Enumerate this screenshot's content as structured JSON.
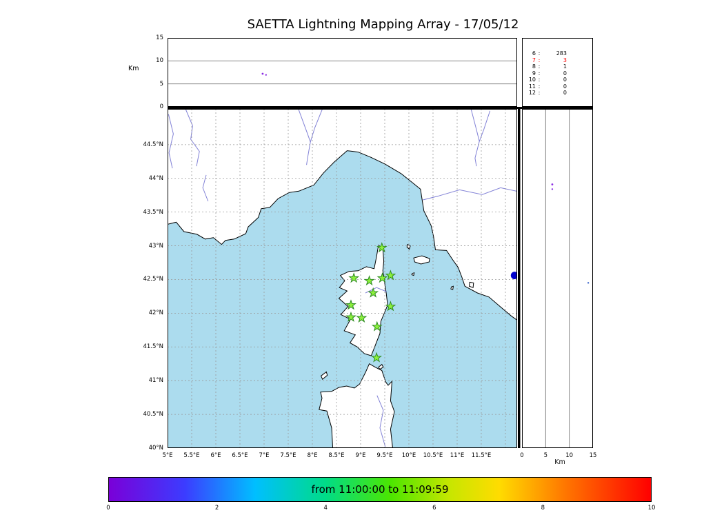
{
  "colors": {
    "background": "#FFFFFF",
    "sea": "#ACDCEE",
    "land": "#FFFFFF",
    "coast": "#000000",
    "river": "#6B6BCF",
    "grid": "#999999",
    "panel_grid": "#777777",
    "station_fill": "#8CF03C",
    "station_edge": "#2E8B22"
  },
  "chart_data": {
    "type": "scatter",
    "title": "SAETTA Lightning Mapping Array - 17/05/12",
    "panels": {
      "alt_lon": {
        "name": "altitude-vs-longitude",
        "ylabel": "Km",
        "ylim": [
          0,
          15
        ],
        "yticks": [
          {
            "value": 15,
            "label": "15"
          },
          {
            "value": 10,
            "label": "10"
          },
          {
            "value": 5,
            "label": "5"
          },
          {
            "value": 0,
            "label": "0"
          }
        ],
        "gridlines": [
          5,
          10
        ],
        "points": [
          {
            "lon": 6.97,
            "alt": 7.2,
            "color": "#8A2BE2",
            "r": 1.4
          },
          {
            "lon": 7.04,
            "alt": 6.95,
            "color": "#8A2BE2",
            "r": 1.2
          }
        ]
      },
      "station_counts": {
        "name": "stations-contributing-source-counts",
        "rows": [
          {
            "station": "6",
            "count": "283",
            "color": "#000000"
          },
          {
            "station": "7",
            "count": "3",
            "color": "#FF0000"
          },
          {
            "station": "8",
            "count": "1",
            "color": "#000000"
          },
          {
            "station": "9",
            "count": "0",
            "color": "#000000"
          },
          {
            "station": "10",
            "count": "0",
            "color": "#000000"
          },
          {
            "station": "11",
            "count": "0",
            "color": "#000000"
          },
          {
            "station": "12",
            "count": "0",
            "color": "#000000"
          }
        ]
      },
      "map": {
        "name": "lon-lat-map",
        "lon_range": [
          5,
          12.243
        ],
        "lat_range": [
          40,
          45.03
        ],
        "lat_ticks": [
          {
            "value": 44.5,
            "label": "44.5°N"
          },
          {
            "value": 44,
            "label": "44°N"
          },
          {
            "value": 43.5,
            "label": "43.5°N"
          },
          {
            "value": 43,
            "label": "43°N"
          },
          {
            "value": 42.5,
            "label": "42.5°N"
          },
          {
            "value": 42,
            "label": "42°N"
          },
          {
            "value": 41.5,
            "label": "41.5°N"
          },
          {
            "value": 41,
            "label": "41°N"
          },
          {
            "value": 40.5,
            "label": "40.5°N"
          },
          {
            "value": 40,
            "label": "40°N"
          }
        ],
        "lon_ticks": [
          {
            "value": 5,
            "label": "5°E"
          },
          {
            "value": 5.5,
            "label": "5.5°E"
          },
          {
            "value": 6,
            "label": "6°E"
          },
          {
            "value": 6.5,
            "label": "6.5°E"
          },
          {
            "value": 7,
            "label": "7°E"
          },
          {
            "value": 7.5,
            "label": "7.5°E"
          },
          {
            "value": 8,
            "label": "8°E"
          },
          {
            "value": 8.5,
            "label": "8.5°E"
          },
          {
            "value": 9,
            "label": "9°E"
          },
          {
            "value": 9.5,
            "label": "9.5°E"
          },
          {
            "value": 10,
            "label": "10°E"
          },
          {
            "value": 10.5,
            "label": "10.5°E"
          },
          {
            "value": 11,
            "label": "11°E"
          },
          {
            "value": 11.5,
            "label": "11.5°E"
          }
        ],
        "grid_lons": [
          5.5,
          6,
          6.5,
          7,
          7.5,
          8,
          8.5,
          9,
          9.5,
          10,
          10.5,
          11,
          11.5,
          12
        ],
        "grid_lats": [
          40.5,
          41,
          41.5,
          42,
          42.5,
          43,
          43.5,
          44,
          44.5
        ],
        "stations": [
          [
            9.44,
            42.97
          ],
          [
            8.86,
            42.52
          ],
          [
            9.18,
            42.48
          ],
          [
            9.45,
            42.52
          ],
          [
            9.62,
            42.56
          ],
          [
            9.26,
            42.3
          ],
          [
            8.8,
            42.12
          ],
          [
            9.62,
            42.1
          ],
          [
            8.8,
            41.94
          ],
          [
            9.02,
            41.93
          ],
          [
            9.34,
            41.8
          ],
          [
            9.33,
            41.34
          ]
        ],
        "points": [
          {
            "lon": 12.19,
            "lat": 42.56,
            "color": "#0000CC",
            "r": 5.5
          }
        ]
      },
      "alt_lat": {
        "name": "altitude-vs-latitude",
        "xlabel": "Km",
        "xlim": [
          0,
          15
        ],
        "xticks": [
          {
            "value": 0,
            "label": "0"
          },
          {
            "value": 5,
            "label": "5"
          },
          {
            "value": 10,
            "label": "10"
          },
          {
            "value": 15,
            "label": "15"
          }
        ],
        "gridlines": [
          5,
          10
        ],
        "points": [
          {
            "lat": 43.91,
            "alt": 6.4,
            "color": "#8A2BE2",
            "r": 1.4
          },
          {
            "lat": 43.84,
            "alt": 6.4,
            "color": "#8A2BE2",
            "r": 1.2
          },
          {
            "lat": 42.45,
            "alt": 14.0,
            "color": "#4169CD",
            "r": 1.2
          }
        ]
      },
      "colorbar": {
        "name": "time-colorbar",
        "label": "from 11:00:00 to 11:09:59",
        "range": [
          0,
          10
        ],
        "ticks": [
          "0",
          "2",
          "4",
          "6",
          "8",
          "10"
        ],
        "stops": [
          {
            "pos": 0,
            "color": "#7A00D8"
          },
          {
            "pos": 0.14,
            "color": "#3C3CFF"
          },
          {
            "pos": 0.27,
            "color": "#00BFFF"
          },
          {
            "pos": 0.4,
            "color": "#00DC87"
          },
          {
            "pos": 0.52,
            "color": "#4CE600"
          },
          {
            "pos": 0.63,
            "color": "#C8E600"
          },
          {
            "pos": 0.72,
            "color": "#FFDC00"
          },
          {
            "pos": 0.84,
            "color": "#FF7800"
          },
          {
            "pos": 1,
            "color": "#FF0000"
          }
        ]
      }
    }
  },
  "basemap": {
    "mainland": [
      [
        4.95,
        43.31
      ],
      [
        5.18,
        43.35
      ],
      [
        5.34,
        43.21
      ],
      [
        5.61,
        43.17
      ],
      [
        5.78,
        43.1
      ],
      [
        5.95,
        43.12
      ],
      [
        6.12,
        43.02
      ],
      [
        6.2,
        43.08
      ],
      [
        6.38,
        43.1
      ],
      [
        6.62,
        43.18
      ],
      [
        6.67,
        43.28
      ],
      [
        6.88,
        43.42
      ],
      [
        6.94,
        43.55
      ],
      [
        7.12,
        43.57
      ],
      [
        7.29,
        43.7
      ],
      [
        7.52,
        43.79
      ],
      [
        7.72,
        43.81
      ],
      [
        8.03,
        43.9
      ],
      [
        8.23,
        44.08
      ],
      [
        8.45,
        44.24
      ],
      [
        8.72,
        44.41
      ],
      [
        8.95,
        44.39
      ],
      [
        9.22,
        44.31
      ],
      [
        9.51,
        44.21
      ],
      [
        9.84,
        44.07
      ],
      [
        10.05,
        43.95
      ],
      [
        10.24,
        43.84
      ],
      [
        10.31,
        43.52
      ],
      [
        10.46,
        43.3
      ],
      [
        10.51,
        43.14
      ],
      [
        10.55,
        42.94
      ],
      [
        10.78,
        42.93
      ],
      [
        10.92,
        42.78
      ],
      [
        11.02,
        42.68
      ],
      [
        11.1,
        42.53
      ],
      [
        11.16,
        42.4
      ],
      [
        11.42,
        42.3
      ],
      [
        11.66,
        42.24
      ],
      [
        11.92,
        42.08
      ],
      [
        12.12,
        41.96
      ],
      [
        12.35,
        41.84
      ],
      [
        12.35,
        45.15
      ],
      [
        4.95,
        45.15
      ]
    ],
    "corsica": [
      [
        9.37,
        43.01
      ],
      [
        9.46,
        42.96
      ],
      [
        9.48,
        42.77
      ],
      [
        9.46,
        42.63
      ],
      [
        9.53,
        42.3
      ],
      [
        9.56,
        42.12
      ],
      [
        9.42,
        41.88
      ],
      [
        9.4,
        41.7
      ],
      [
        9.22,
        41.37
      ],
      [
        9.08,
        41.4
      ],
      [
        8.93,
        41.5
      ],
      [
        8.78,
        41.56
      ],
      [
        8.89,
        41.68
      ],
      [
        8.66,
        41.74
      ],
      [
        8.79,
        41.91
      ],
      [
        8.59,
        41.98
      ],
      [
        8.74,
        42.1
      ],
      [
        8.55,
        42.22
      ],
      [
        8.72,
        42.33
      ],
      [
        8.56,
        42.38
      ],
      [
        8.67,
        42.48
      ],
      [
        8.58,
        42.56
      ],
      [
        8.76,
        42.62
      ],
      [
        8.95,
        42.63
      ],
      [
        9.12,
        42.69
      ],
      [
        9.28,
        42.66
      ],
      [
        9.33,
        42.84
      ]
    ],
    "sardinia": [
      [
        8.43,
        39.9
      ],
      [
        8.4,
        40.3
      ],
      [
        8.3,
        40.55
      ],
      [
        8.14,
        40.57
      ],
      [
        8.2,
        40.74
      ],
      [
        8.17,
        40.83
      ],
      [
        8.4,
        40.84
      ],
      [
        8.55,
        40.9
      ],
      [
        8.71,
        40.92
      ],
      [
        8.87,
        40.89
      ],
      [
        8.98,
        40.95
      ],
      [
        9.1,
        41.12
      ],
      [
        9.18,
        41.25
      ],
      [
        9.3,
        41.2
      ],
      [
        9.44,
        41.15
      ],
      [
        9.52,
        40.98
      ],
      [
        9.57,
        40.93
      ],
      [
        9.65,
        40.99
      ],
      [
        9.62,
        40.7
      ],
      [
        9.7,
        40.54
      ],
      [
        9.62,
        40.28
      ],
      [
        9.68,
        39.9
      ]
    ],
    "islands": [
      [
        [
          10.1,
          42.82
        ],
        [
          10.27,
          42.85
        ],
        [
          10.43,
          42.81
        ],
        [
          10.42,
          42.76
        ],
        [
          10.25,
          42.73
        ],
        [
          10.12,
          42.76
        ]
      ],
      [
        [
          8.21,
          41.02
        ],
        [
          8.31,
          41.08
        ],
        [
          8.29,
          41.13
        ],
        [
          8.18,
          41.07
        ]
      ],
      [
        [
          9.37,
          41.2
        ],
        [
          9.44,
          41.24
        ],
        [
          9.47,
          41.2
        ],
        [
          9.4,
          41.17
        ]
      ],
      [
        [
          9.97,
          43.02
        ],
        [
          10.03,
          43.0
        ],
        [
          10.01,
          42.95
        ],
        [
          9.96,
          42.98
        ]
      ],
      [
        [
          11.26,
          42.46
        ],
        [
          11.34,
          42.45
        ],
        [
          11.33,
          42.38
        ],
        [
          11.25,
          42.4
        ]
      ],
      [
        [
          10.07,
          42.59
        ],
        [
          10.11,
          42.6
        ],
        [
          10.1,
          42.56
        ],
        [
          10.06,
          42.57
        ]
      ],
      [
        [
          10.88,
          42.39
        ],
        [
          10.92,
          42.4
        ],
        [
          10.91,
          42.35
        ],
        [
          10.87,
          42.36
        ]
      ]
    ],
    "rivers": [
      [
        [
          5.36,
          45.05
        ],
        [
          5.52,
          44.78
        ],
        [
          5.48,
          44.58
        ],
        [
          5.66,
          44.4
        ],
        [
          5.6,
          44.18
        ]
      ],
      [
        [
          5.8,
          44.05
        ],
        [
          5.73,
          43.86
        ],
        [
          5.84,
          43.66
        ]
      ],
      [
        [
          7.7,
          45.05
        ],
        [
          7.88,
          44.7
        ],
        [
          7.96,
          44.54
        ],
        [
          7.9,
          44.3
        ],
        [
          7.88,
          44.2
        ]
      ],
      [
        [
          8.22,
          45.05
        ],
        [
          8.05,
          44.75
        ],
        [
          7.96,
          44.54
        ]
      ],
      [
        [
          11.28,
          45.05
        ],
        [
          11.4,
          44.72
        ],
        [
          11.46,
          44.55
        ],
        [
          11.37,
          44.3
        ],
        [
          11.4,
          44.18
        ]
      ],
      [
        [
          11.68,
          45.0
        ],
        [
          11.55,
          44.72
        ],
        [
          11.46,
          44.55
        ]
      ],
      [
        [
          12.3,
          43.8
        ],
        [
          11.9,
          43.86
        ],
        [
          11.52,
          43.76
        ],
        [
          11.05,
          43.83
        ],
        [
          10.62,
          43.74
        ],
        [
          10.29,
          43.68
        ]
      ],
      [
        [
          5.02,
          44.95
        ],
        [
          5.12,
          44.66
        ],
        [
          5.03,
          44.38
        ],
        [
          5.1,
          44.15
        ]
      ],
      [
        [
          9.1,
          42.3
        ],
        [
          9.33,
          42.38
        ],
        [
          9.54,
          42.32
        ]
      ],
      [
        [
          9.34,
          40.78
        ],
        [
          9.47,
          40.56
        ],
        [
          9.4,
          40.3
        ],
        [
          9.51,
          40.02
        ]
      ]
    ]
  }
}
